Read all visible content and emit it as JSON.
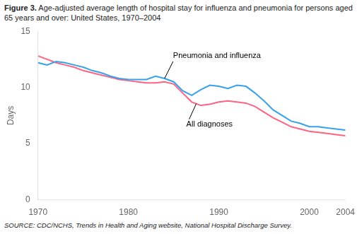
{
  "chart_data": {
    "type": "line",
    "title": "Figure 3.",
    "subtitle": "Age-adjusted average length of hospital stay for influenza and pneumonia for persons aged 65 years and over: United States, 1970–2004",
    "y_label": "Days",
    "source": "SOURCE: CDC/NCHS, Trends in Health and Aging website, National Hospital Discharge Survey.",
    "x": [
      1970,
      1971,
      1972,
      1973,
      1974,
      1975,
      1976,
      1977,
      1978,
      1979,
      1980,
      1981,
      1982,
      1983,
      1984,
      1985,
      1986,
      1987,
      1988,
      1989,
      1990,
      1991,
      1992,
      1993,
      1994,
      1995,
      1996,
      1997,
      1998,
      1999,
      2000,
      2001,
      2002,
      2003,
      2004
    ],
    "series": [
      {
        "values": [
          12.2,
          12.0,
          12.3,
          12.2,
          12.0,
          11.8,
          11.5,
          11.3,
          11.0,
          10.8,
          10.7,
          10.7,
          10.7,
          11.0,
          10.8,
          10.5,
          9.7,
          9.3,
          9.8,
          10.2,
          10.1,
          9.9,
          10.2,
          10.1,
          9.5,
          8.8,
          8.0,
          7.5,
          7.0,
          6.8,
          6.5,
          6.5,
          6.4,
          6.3,
          6.2
        ]
      },
      {
        "values": [
          12.8,
          12.5,
          12.2,
          12.0,
          11.8,
          11.5,
          11.3,
          11.1,
          10.9,
          10.7,
          10.6,
          10.5,
          10.4,
          10.4,
          10.5,
          10.3,
          9.5,
          8.7,
          8.4,
          8.5,
          8.7,
          8.8,
          8.7,
          8.6,
          8.3,
          7.8,
          7.3,
          6.9,
          6.5,
          6.3,
          6.1,
          6.0,
          5.9,
          5.8,
          5.7
        ]
      }
    ],
    "annotations": [
      {
        "text": "Pneumonia and influenza",
        "x": 1984,
        "y": 10.8
      },
      {
        "text": "All diagnoses",
        "x": 1987.5,
        "y": 8.55
      }
    ],
    "xlim": [
      1970,
      2004
    ],
    "xticks": [
      1970,
      1980,
      1990,
      2000,
      2004
    ],
    "ylim": [
      0,
      15
    ],
    "yticks": [
      0,
      5,
      10,
      15
    ],
    "grid": false
  }
}
